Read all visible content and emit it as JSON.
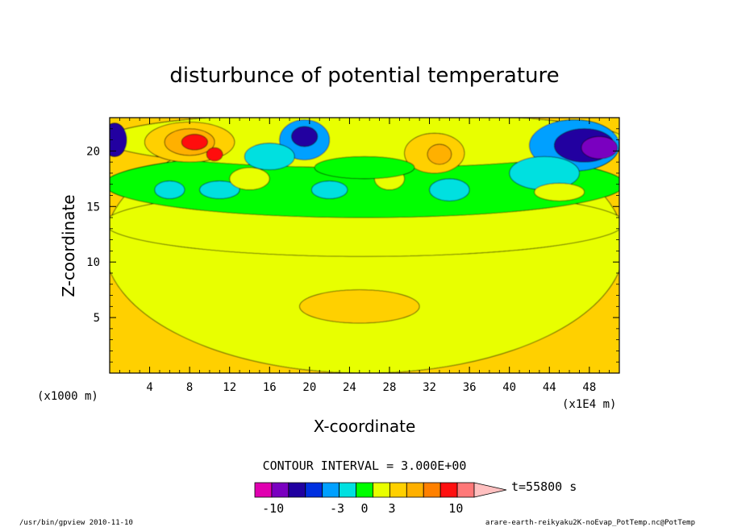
{
  "chart_data": {
    "type": "heatmap",
    "title": "disturbunce of potential temperature",
    "xlabel": "X-coordinate",
    "ylabel": "Z-coordinate",
    "x_unit": "(x1E4 m)",
    "y_unit": "(x1000 m)",
    "x_ticks": [
      4,
      8,
      12,
      16,
      20,
      24,
      28,
      32,
      36,
      40,
      44,
      48
    ],
    "y_ticks": [
      5,
      10,
      15,
      20
    ],
    "xlim": [
      0,
      51
    ],
    "ylim": [
      0,
      23
    ],
    "contour_interval_label": "CONTOUR INTERVAL = 3.000E+00",
    "time_label": "t=55800 s",
    "colorbar": {
      "tick_labels": [
        "-10",
        "-3",
        "0",
        "3",
        "10"
      ],
      "tick_values": [
        -10,
        -3,
        0,
        3,
        10
      ],
      "range": [
        -12,
        12
      ],
      "colors": [
        "#e000b0",
        "#7a00c0",
        "#2000a0",
        "#0030e0",
        "#00a0ff",
        "#00e0e0",
        "#00ff00",
        "#e8ff00",
        "#ffd000",
        "#ffb000",
        "#ff8000",
        "#ff1010",
        "#ff7878",
        "#ffc0c0"
      ]
    },
    "regions": [
      {
        "x": 25.5,
        "y": 11.5,
        "rx": 26,
        "ry": 11.5,
        "value": 1.5
      },
      {
        "x": 25.5,
        "y": 13.5,
        "rx": 26,
        "ry": 3,
        "value": 0.5
      },
      {
        "x": 25.5,
        "y": 17,
        "rx": 26,
        "ry": 3,
        "value": -0.5
      },
      {
        "x": 25.5,
        "y": 21,
        "rx": 26,
        "ry": 2.5,
        "value": 0.5
      },
      {
        "x": 25,
        "y": 6,
        "rx": 6,
        "ry": 1.5,
        "value": 3
      },
      {
        "x": 8,
        "y": 20.8,
        "rx": 4.5,
        "ry": 1.8,
        "value": 3
      },
      {
        "x": 8,
        "y": 20.8,
        "rx": 2.5,
        "ry": 1.2,
        "value": 4.5
      },
      {
        "x": 8.5,
        "y": 20.8,
        "rx": 1.3,
        "ry": 0.7,
        "value": 7
      },
      {
        "x": 10.5,
        "y": 19.7,
        "rx": 0.8,
        "ry": 0.6,
        "value": 7
      },
      {
        "x": 32.5,
        "y": 19.8,
        "rx": 3,
        "ry": 1.8,
        "value": 3
      },
      {
        "x": 33,
        "y": 19.7,
        "rx": 1.2,
        "ry": 0.9,
        "value": 4.5
      },
      {
        "x": 19.5,
        "y": 21,
        "rx": 2.5,
        "ry": 1.8,
        "value": -5
      },
      {
        "x": 19.5,
        "y": 21.3,
        "rx": 1.3,
        "ry": 0.9,
        "value": -7
      },
      {
        "x": 46.5,
        "y": 20.5,
        "rx": 4.5,
        "ry": 2.3,
        "value": -5
      },
      {
        "x": 47.5,
        "y": 20.5,
        "rx": 3,
        "ry": 1.5,
        "value": -7
      },
      {
        "x": 49,
        "y": 20.3,
        "rx": 1.8,
        "ry": 1,
        "value": -9
      },
      {
        "x": 0.5,
        "y": 21,
        "rx": 1.2,
        "ry": 1.5,
        "value": -7
      },
      {
        "x": 16,
        "y": 19.5,
        "rx": 2.5,
        "ry": 1.2,
        "value": -2
      },
      {
        "x": 34,
        "y": 16.5,
        "rx": 2,
        "ry": 1,
        "value": -2
      },
      {
        "x": 6,
        "y": 16.5,
        "rx": 1.5,
        "ry": 0.8,
        "value": -2
      },
      {
        "x": 11,
        "y": 16.5,
        "rx": 2,
        "ry": 0.8,
        "value": -2
      },
      {
        "x": 22,
        "y": 16.5,
        "rx": 1.8,
        "ry": 0.8,
        "value": -2
      },
      {
        "x": 43.5,
        "y": 18,
        "rx": 3.5,
        "ry": 1.5,
        "value": -2
      },
      {
        "x": 14,
        "y": 17.5,
        "rx": 2,
        "ry": 1,
        "value": 0.5
      },
      {
        "x": 28,
        "y": 17.5,
        "rx": 1.5,
        "ry": 1,
        "value": 0.5
      },
      {
        "x": 45,
        "y": 16.3,
        "rx": 2.5,
        "ry": 0.8,
        "value": 0.5
      },
      {
        "x": 25.5,
        "y": 18.5,
        "rx": 5,
        "ry": 1,
        "value": -0.5
      }
    ]
  },
  "footer": {
    "left": "/usr/bin/gpview   2010-11-10",
    "right": "arare-earth-reikyaku2K-noEvap_PotTemp.nc@PotTemp"
  }
}
